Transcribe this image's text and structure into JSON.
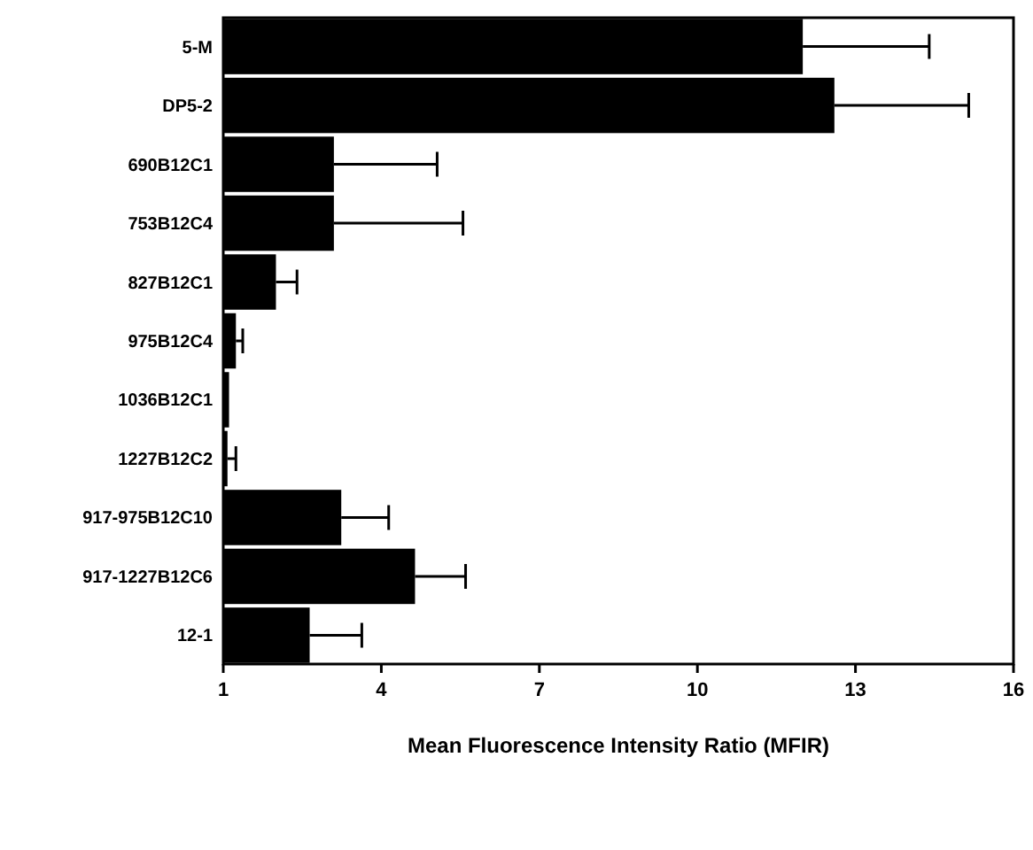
{
  "chart_data": {
    "type": "bar",
    "orientation": "horizontal",
    "xlabel": "Mean Fluorescence Intensity Ratio (MFIR)",
    "categories": [
      "5-M",
      "DP5-2",
      "690B12C1",
      "753B12C4",
      "827B12C1",
      "975B12C4",
      "1036B12C1",
      "1227B12C2",
      "917-975B12C10",
      "917-1227B12C6",
      "12-1"
    ],
    "values": [
      12.0,
      12.6,
      3.1,
      3.1,
      2.0,
      1.24,
      1.11,
      1.08,
      3.24,
      4.64,
      2.64
    ],
    "errors": [
      [
        12.0,
        14.4
      ],
      [
        12.6,
        15.15
      ],
      [
        3.1,
        5.06
      ],
      [
        3.1,
        5.55
      ],
      [
        2.0,
        2.4
      ],
      [
        1.24,
        1.37
      ],
      null,
      [
        1.08,
        1.24
      ],
      [
        3.24,
        4.14
      ],
      [
        4.64,
        5.6
      ],
      [
        2.64,
        3.63
      ]
    ],
    "color": "#000000",
    "xlim": [
      1,
      16
    ],
    "xticks": [
      1,
      4,
      7,
      10,
      13,
      16
    ],
    "grid": false
  }
}
